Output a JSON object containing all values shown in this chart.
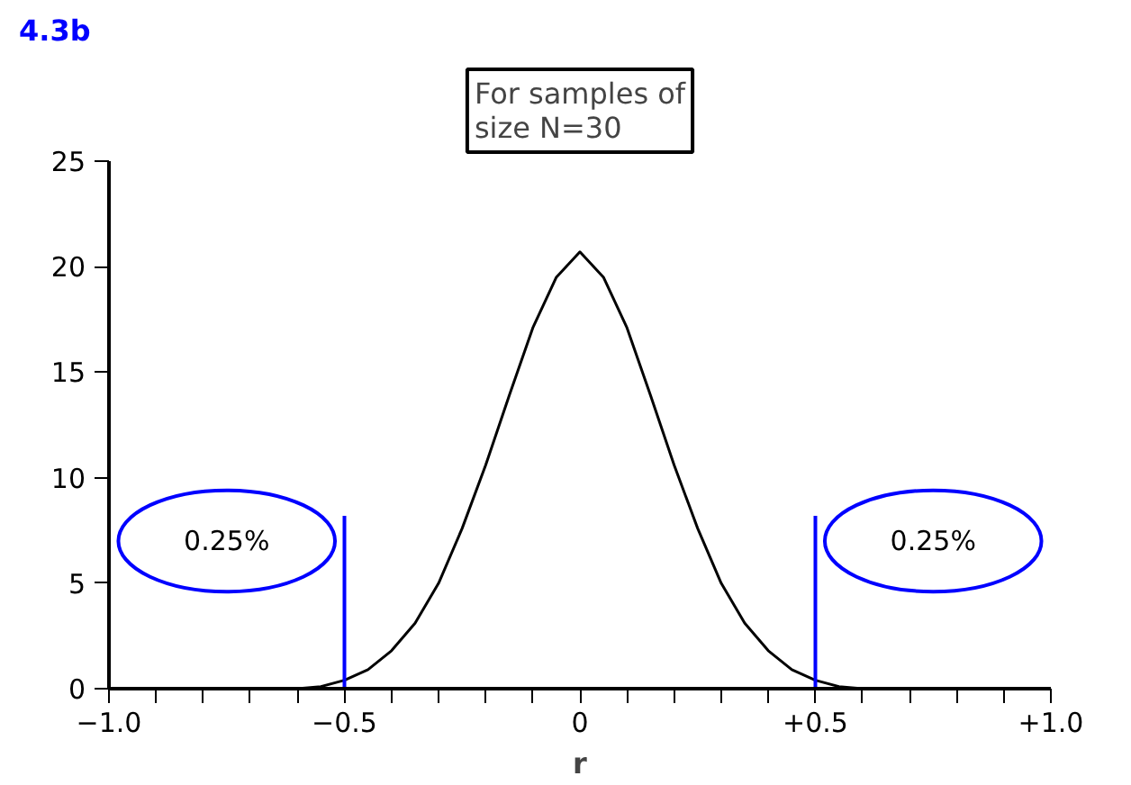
{
  "chart_data": {
    "type": "line",
    "title": "4.3b",
    "xlabel": "r",
    "annotations": [
      "For samples of\nsize N=30",
      "0.25%",
      "0.25%"
    ],
    "x": [
      -0.6,
      -0.55,
      -0.5,
      -0.45,
      -0.4,
      -0.35,
      -0.3,
      -0.25,
      -0.2,
      -0.15,
      -0.1,
      -0.05,
      0,
      0.05,
      0.1,
      0.15,
      0.2,
      0.25,
      0.3,
      0.35,
      0.4,
      0.45,
      0.5,
      0.55,
      0.6
    ],
    "series": [
      {
        "color": "#000000",
        "values": [
          0.0,
          0.1,
          0.4,
          0.9,
          1.8,
          3.1,
          5.0,
          7.6,
          10.6,
          13.9,
          17.1,
          19.5,
          20.7,
          19.5,
          17.1,
          13.9,
          10.6,
          7.6,
          5.0,
          3.1,
          1.8,
          0.9,
          0.4,
          0.1,
          0.0
        ]
      }
    ],
    "xlim": [
      -1.0,
      1.0
    ],
    "xticks": [
      {
        "value": -1.0,
        "label": "−1.0"
      },
      {
        "value": -0.9,
        "label": null
      },
      {
        "value": -0.8,
        "label": null
      },
      {
        "value": -0.7,
        "label": null
      },
      {
        "value": -0.6,
        "label": null
      },
      {
        "value": -0.5,
        "label": "−0.5"
      },
      {
        "value": -0.4,
        "label": null
      },
      {
        "value": -0.3,
        "label": null
      },
      {
        "value": -0.2,
        "label": null
      },
      {
        "value": -0.1,
        "label": null
      },
      0,
      {
        "value": 0.1,
        "label": null
      },
      {
        "value": 0.2,
        "label": null
      },
      {
        "value": 0.3,
        "label": null
      },
      {
        "value": 0.4,
        "label": null
      },
      {
        "value": 0.5,
        "label": "+0.5"
      },
      {
        "value": 0.6,
        "label": null
      },
      {
        "value": 0.7,
        "label": null
      },
      {
        "value": 0.8,
        "label": null
      },
      {
        "value": 0.9,
        "label": null
      },
      {
        "value": 1.0,
        "label": "+1.0"
      }
    ],
    "ylim": [
      0,
      25
    ],
    "yticks": [
      0,
      5,
      10,
      15,
      20,
      25
    ],
    "ref_lines": [
      {
        "axis": "x",
        "value": -0.5,
        "color": "#0000ff"
      },
      {
        "axis": "x",
        "value": 0.5,
        "color": "#0000ff"
      }
    ],
    "grid": false,
    "line_style": "solid",
    "marker": "none"
  }
}
